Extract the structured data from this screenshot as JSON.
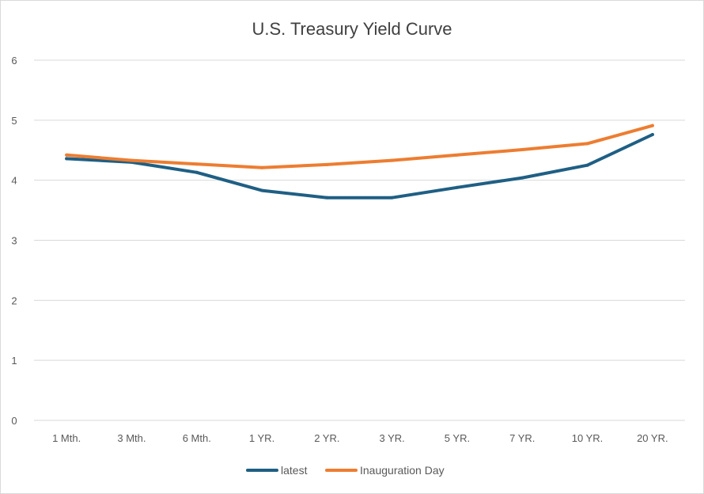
{
  "chart_data": {
    "type": "line",
    "title": "U.S. Treasury Yield Curve",
    "xlabel": "",
    "ylabel": "",
    "categories": [
      "1 Mth.",
      "3 Mth.",
      "6 Mth.",
      "1 YR.",
      "2 YR.",
      "3 YR.",
      "5 YR.",
      "7 YR.",
      "10 YR.",
      "20 YR."
    ],
    "ylim": [
      0,
      6
    ],
    "yticks": [
      0,
      1,
      2,
      3,
      4,
      5,
      6
    ],
    "grid": true,
    "legend_position": "bottom",
    "series": [
      {
        "name": "latest",
        "color": "#1f5f84",
        "values": [
          4.36,
          4.3,
          4.13,
          3.83,
          3.71,
          3.71,
          3.88,
          4.04,
          4.25,
          4.76
        ]
      },
      {
        "name": "Inauguration Day",
        "color": "#ed7d31",
        "values": [
          4.42,
          4.33,
          4.27,
          4.21,
          4.26,
          4.33,
          4.42,
          4.51,
          4.61,
          4.91
        ]
      }
    ]
  }
}
